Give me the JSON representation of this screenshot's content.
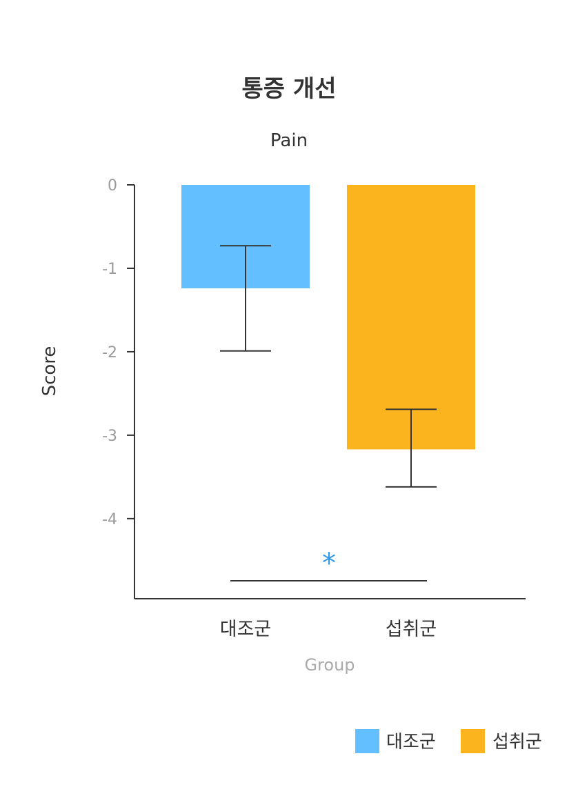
{
  "chart_data": {
    "type": "bar",
    "title": "통증 개선",
    "subtitle": "Pain",
    "xlabel": "Group",
    "ylabel": "Score",
    "categories": [
      "대조군",
      "섭취군"
    ],
    "values": [
      -1.24,
      -3.17
    ],
    "error_bars": [
      {
        "upper": -0.73,
        "lower": -1.99
      },
      {
        "upper": -2.69,
        "lower": -3.62
      }
    ],
    "colors": [
      "#63BFFF",
      "#FBB41E"
    ],
    "ylim": [
      -4.96,
      0
    ],
    "yticks": [
      "0",
      "-1",
      "-2",
      "-3",
      "-4"
    ],
    "ytick_values": [
      0,
      -1,
      -2,
      -3,
      -4
    ],
    "significance": {
      "label": "*",
      "color": "#3399E6",
      "between": [
        "대조군",
        "섭취군"
      ]
    },
    "legend": {
      "placement": "bottom-right",
      "entries": [
        {
          "label": "대조군",
          "color": "#63BFFF"
        },
        {
          "label": "섭취군",
          "color": "#FBB41E"
        }
      ]
    },
    "grid": false
  }
}
